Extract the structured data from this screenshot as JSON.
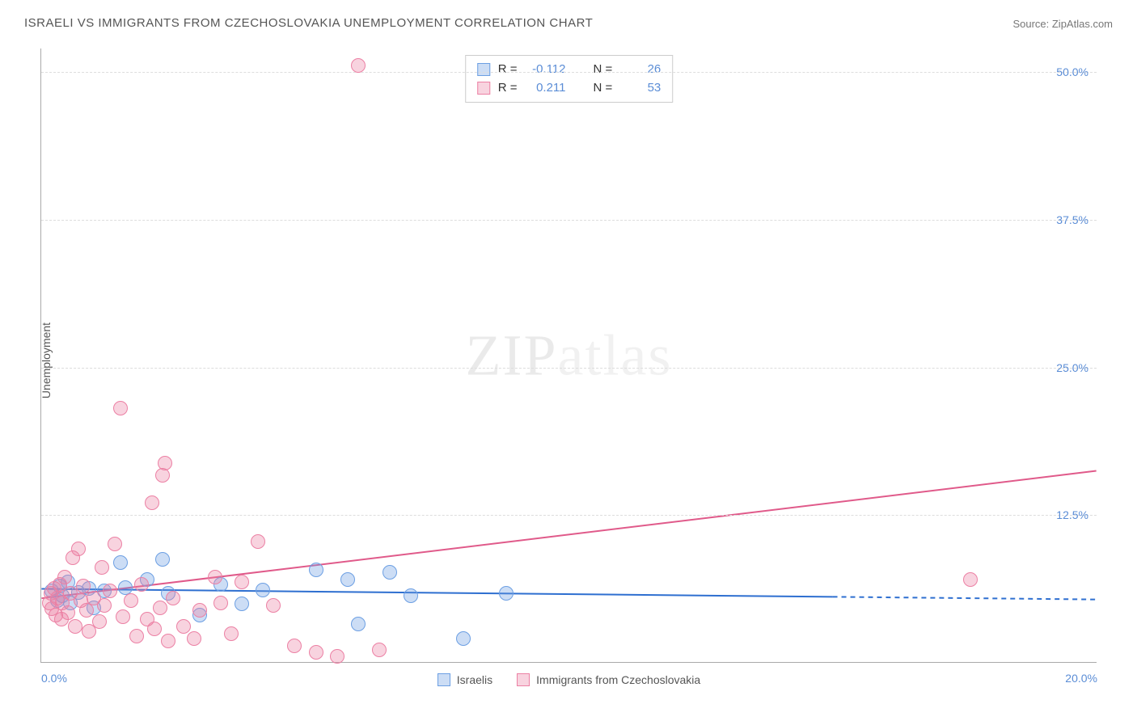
{
  "title": "ISRAELI VS IMMIGRANTS FROM CZECHOSLOVAKIA UNEMPLOYMENT CORRELATION CHART",
  "source": "Source: ZipAtlas.com",
  "watermark_main": "ZIP",
  "watermark_sub": "atlas",
  "y_axis_label": "Unemployment",
  "chart": {
    "type": "scatter",
    "background_color": "#ffffff",
    "grid_color": "#dddddd",
    "axis_color": "#aaaaaa",
    "tick_label_color": "#5b8dd6",
    "xlim": [
      0,
      20
    ],
    "ylim": [
      0,
      52
    ],
    "x_ticks": [
      {
        "v": 0,
        "label": "0.0%"
      },
      {
        "v": 20,
        "label": "20.0%"
      }
    ],
    "y_ticks": [
      {
        "v": 12.5,
        "label": "12.5%"
      },
      {
        "v": 25.0,
        "label": "25.0%"
      },
      {
        "v": 37.5,
        "label": "37.5%"
      },
      {
        "v": 50.0,
        "label": "50.0%"
      }
    ],
    "marker_radius": 9,
    "marker_border_width": 1.5,
    "line_width": 2,
    "series": [
      {
        "id": "israelis",
        "label": "Israelis",
        "fill": "rgba(108,159,227,0.35)",
        "stroke": "#6c9fe3",
        "line_color": "#2e6fd0",
        "R": "-0.112",
        "N": "26",
        "trend": {
          "x1": 0,
          "y1": 6.2,
          "x2": 20,
          "y2": 5.3,
          "solid_until_x": 15.0
        },
        "points": [
          [
            0.2,
            6.0
          ],
          [
            0.3,
            5.2
          ],
          [
            0.35,
            6.4
          ],
          [
            0.4,
            5.6
          ],
          [
            0.5,
            6.8
          ],
          [
            0.55,
            5.0
          ],
          [
            0.7,
            5.9
          ],
          [
            0.9,
            6.2
          ],
          [
            1.0,
            4.6
          ],
          [
            1.2,
            6.0
          ],
          [
            1.5,
            8.4
          ],
          [
            1.6,
            6.3
          ],
          [
            2.0,
            7.0
          ],
          [
            2.3,
            8.7
          ],
          [
            2.4,
            5.8
          ],
          [
            3.0,
            4.0
          ],
          [
            3.4,
            6.6
          ],
          [
            3.8,
            4.9
          ],
          [
            4.2,
            6.1
          ],
          [
            5.2,
            7.8
          ],
          [
            5.8,
            7.0
          ],
          [
            6.6,
            7.6
          ],
          [
            7.0,
            5.6
          ],
          [
            8.0,
            2.0
          ],
          [
            8.8,
            5.8
          ],
          [
            6.0,
            3.2
          ]
        ]
      },
      {
        "id": "immigrants",
        "label": "Immigrants from Czechoslovakia",
        "fill": "rgba(236,128,164,0.35)",
        "stroke": "#ec80a4",
        "line_color": "#e05a8a",
        "R": "0.211",
        "N": "53",
        "trend": {
          "x1": 0,
          "y1": 5.4,
          "x2": 20,
          "y2": 16.2,
          "solid_until_x": 20
        },
        "points": [
          [
            0.15,
            5.0
          ],
          [
            0.18,
            5.8
          ],
          [
            0.2,
            4.5
          ],
          [
            0.25,
            6.2
          ],
          [
            0.28,
            4.0
          ],
          [
            0.3,
            5.4
          ],
          [
            0.35,
            6.6
          ],
          [
            0.38,
            3.6
          ],
          [
            0.4,
            5.0
          ],
          [
            0.45,
            7.2
          ],
          [
            0.5,
            4.2
          ],
          [
            0.55,
            5.8
          ],
          [
            0.6,
            8.8
          ],
          [
            0.65,
            3.0
          ],
          [
            0.7,
            9.6
          ],
          [
            0.75,
            5.2
          ],
          [
            0.8,
            6.4
          ],
          [
            0.85,
            4.4
          ],
          [
            0.9,
            2.6
          ],
          [
            1.0,
            5.4
          ],
          [
            1.1,
            3.4
          ],
          [
            1.15,
            8.0
          ],
          [
            1.2,
            4.8
          ],
          [
            1.3,
            6.0
          ],
          [
            1.4,
            10.0
          ],
          [
            1.5,
            21.5
          ],
          [
            1.55,
            3.8
          ],
          [
            1.7,
            5.2
          ],
          [
            1.8,
            2.2
          ],
          [
            1.9,
            6.6
          ],
          [
            2.0,
            3.6
          ],
          [
            2.1,
            13.5
          ],
          [
            2.15,
            2.8
          ],
          [
            2.25,
            4.6
          ],
          [
            2.3,
            15.8
          ],
          [
            2.35,
            16.8
          ],
          [
            2.4,
            1.8
          ],
          [
            2.5,
            5.4
          ],
          [
            2.7,
            3.0
          ],
          [
            2.9,
            2.0
          ],
          [
            3.0,
            4.4
          ],
          [
            3.3,
            7.2
          ],
          [
            3.4,
            5.0
          ],
          [
            3.6,
            2.4
          ],
          [
            3.8,
            6.8
          ],
          [
            4.1,
            10.2
          ],
          [
            4.4,
            4.8
          ],
          [
            4.8,
            1.4
          ],
          [
            5.2,
            0.8
          ],
          [
            5.6,
            0.5
          ],
          [
            6.0,
            50.5
          ],
          [
            6.4,
            1.0
          ],
          [
            17.6,
            7.0
          ]
        ]
      }
    ]
  },
  "corr_box": {
    "r_label": "R =",
    "n_label": "N ="
  }
}
